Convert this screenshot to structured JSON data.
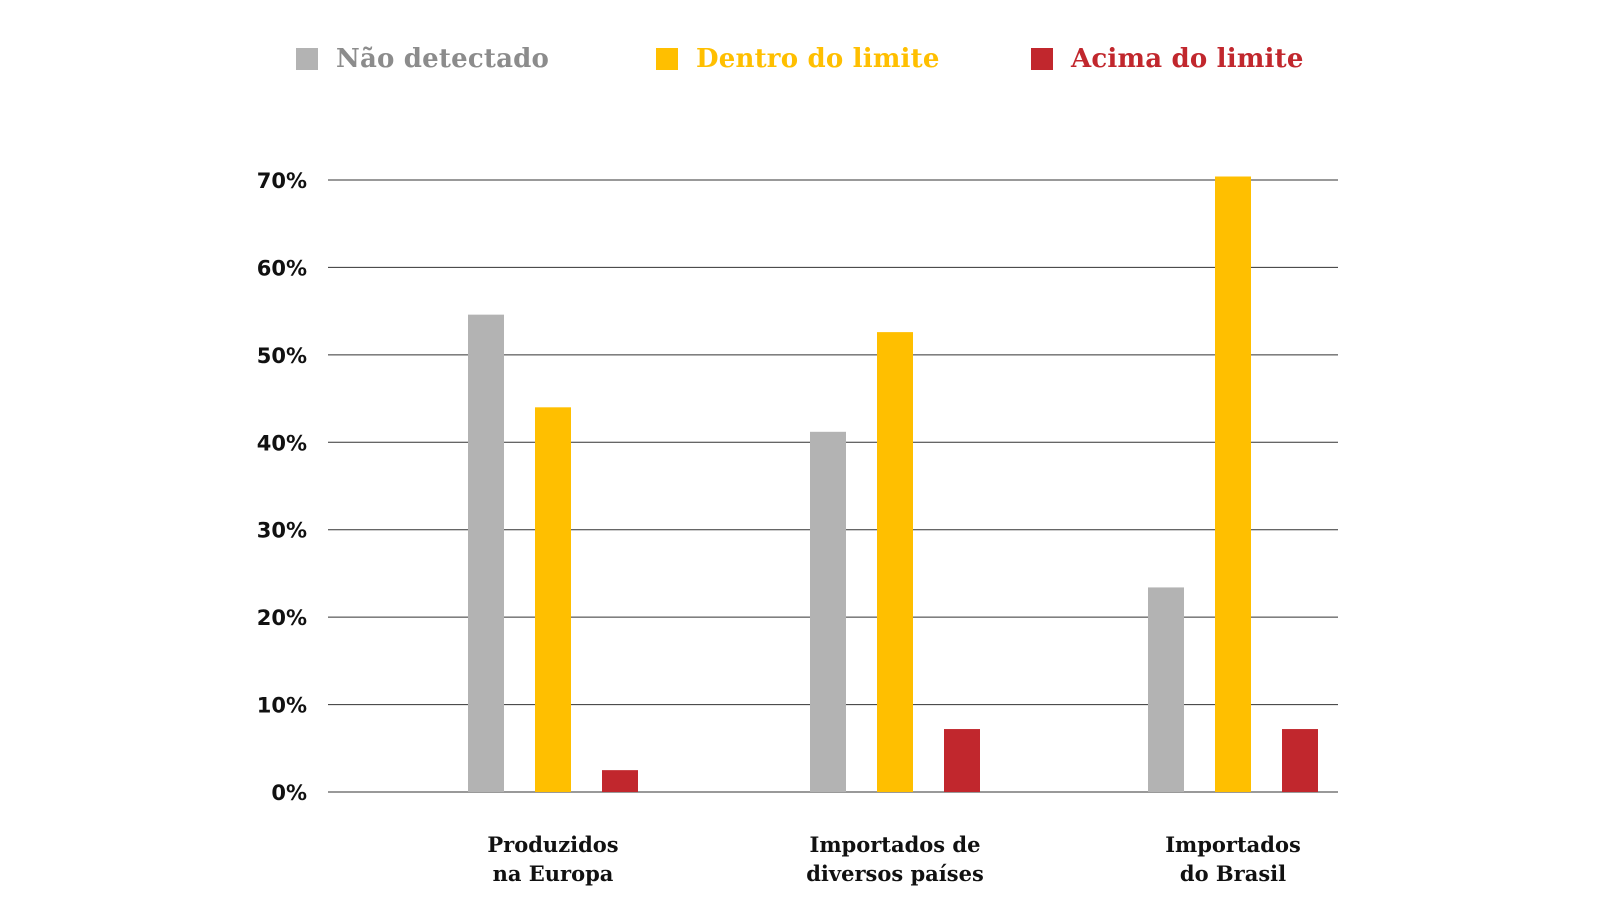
{
  "legend": [
    {
      "label": "Não detectado",
      "color": "#b3b3b3"
    },
    {
      "label": "Dentro do limite",
      "color": "#ffbf00"
    },
    {
      "label": "Acima do limite",
      "color": "#c1272d"
    }
  ],
  "chart_data": {
    "type": "bar",
    "categories": [
      [
        "Produzidos",
        "na Europa"
      ],
      [
        "Importados de",
        "diversos países"
      ],
      [
        "Importados",
        "do Brasil"
      ]
    ],
    "series": [
      {
        "name": "Não detectado",
        "color": "#b3b3b3",
        "values": [
          54.6,
          41.2,
          23.4
        ]
      },
      {
        "name": "Dentro do limite",
        "color": "#ffbf00",
        "values": [
          44.0,
          52.6,
          70.4
        ]
      },
      {
        "name": "Acima do limite",
        "color": "#c1272d",
        "values": [
          2.5,
          7.2,
          7.2
        ]
      }
    ],
    "yticks": [
      "0%",
      "10%",
      "20%",
      "30%",
      "40%",
      "50%",
      "60%",
      "70%"
    ],
    "ylim": [
      0,
      70
    ],
    "grid": true,
    "legend_position": "top"
  }
}
